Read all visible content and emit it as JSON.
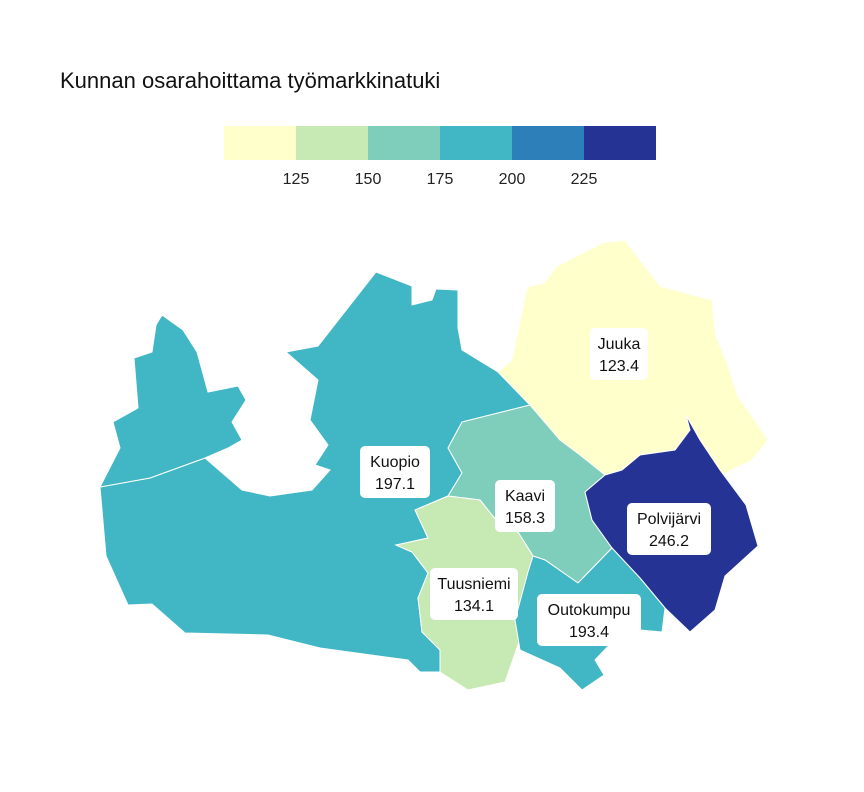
{
  "title": "Kunnan osarahoittama työmarkkinatuki",
  "legend": {
    "breaks": [
      125,
      150,
      175,
      200,
      225
    ],
    "colors": [
      "#ffffcc",
      "#c7e9b4",
      "#7fcdbb",
      "#41b6c4",
      "#2c7fb8",
      "#253494"
    ]
  },
  "chart_data": {
    "type": "choropleth",
    "title": "Kunnan osarahoittama työmarkkinatuki",
    "regions": [
      {
        "name": "Kuopio",
        "value": "197.1",
        "color": "#41b6c4"
      },
      {
        "name": "Juuka",
        "value": "123.4",
        "color": "#ffffcc"
      },
      {
        "name": "Kaavi",
        "value": "158.3",
        "color": "#7fcdbb"
      },
      {
        "name": "Polvijärvi",
        "value": "246.2",
        "color": "#253494"
      },
      {
        "name": "Tuusniemi",
        "value": "134.1",
        "color": "#c7e9b4"
      },
      {
        "name": "Outokumpu",
        "value": "193.4",
        "color": "#41b6c4"
      }
    ]
  }
}
